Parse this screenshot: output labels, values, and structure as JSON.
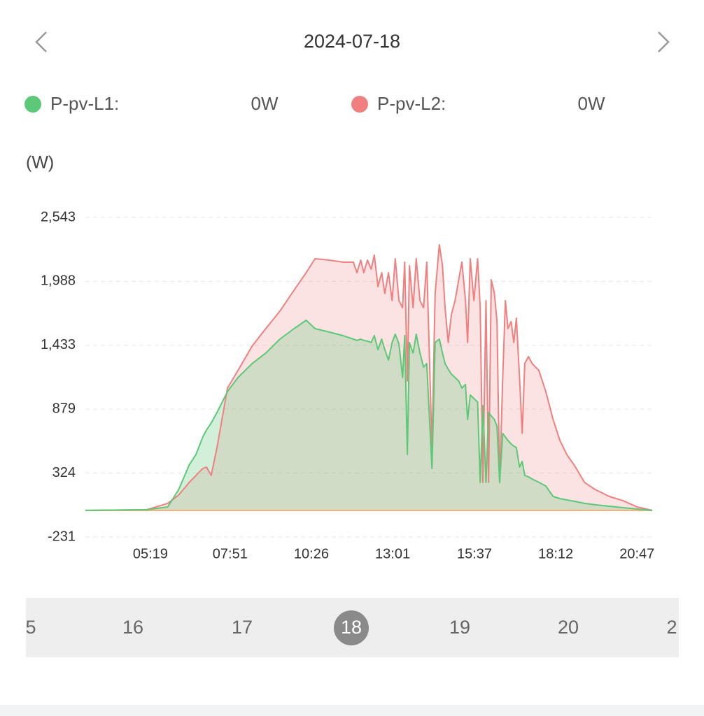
{
  "header": {
    "date": "2024-07-18"
  },
  "chart_data": {
    "type": "area",
    "y_label": "(W)",
    "x": [
      195,
      312,
      352,
      373,
      393,
      406,
      419,
      426,
      435,
      446,
      466,
      486,
      513,
      539,
      566,
      593,
      616,
      633,
      660,
      686,
      706,
      713,
      720,
      726,
      733,
      740,
      746,
      753,
      760,
      766,
      773,
      780,
      786,
      793,
      800,
      804,
      809,
      813,
      820,
      826,
      833,
      840,
      846,
      856,
      862,
      870,
      876,
      881,
      887,
      893,
      900,
      907,
      913,
      920,
      924,
      929,
      936,
      943,
      948,
      953,
      959,
      964,
      969,
      975,
      980,
      985,
      991,
      996,
      1001,
      1007,
      1012,
      1017,
      1023,
      1028,
      1033,
      1040,
      1047,
      1060,
      1073,
      1087,
      1100,
      1113,
      1127,
      1147,
      1167,
      1194,
      1220,
      1247,
      1276
    ],
    "series": [
      {
        "name": "P-pv-L1:",
        "current": "0W",
        "color": "#5cc878",
        "values": [
          0,
          6,
          30,
          182,
          395,
          486,
          637,
          698,
          759,
          850,
          1032,
          1153,
          1275,
          1366,
          1487,
          1578,
          1651,
          1578,
          1548,
          1518,
          1487,
          1475,
          1487,
          1475,
          1469,
          1457,
          1518,
          1396,
          1487,
          1396,
          1305,
          1457,
          1530,
          1445,
          1153,
          1518,
          486,
          1457,
          1366,
          1530,
          1366,
          1244,
          1275,
          364,
          1457,
          1487,
          1366,
          1275,
          1226,
          1184,
          1153,
          1123,
          1062,
          1093,
          789,
          1002,
          971,
          941,
          243,
          911,
          243,
          850,
          820,
          789,
          729,
          243,
          668,
          637,
          607,
          577,
          558,
          546,
          376,
          425,
          304,
          291,
          273,
          243,
          212,
          121,
          103,
          91,
          79,
          61,
          49,
          36,
          24,
          12,
          0
        ]
      },
      {
        "name": "P-pv-L2:",
        "current": "0W",
        "color": "#f08080",
        "values": [
          0,
          6,
          61,
          134,
          243,
          304,
          364,
          376,
          304,
          546,
          1062,
          1214,
          1426,
          1578,
          1730,
          1912,
          2064,
          2185,
          2173,
          2155,
          2155,
          2064,
          2173,
          2064,
          2173,
          2094,
          2216,
          1942,
          2064,
          1882,
          2064,
          1821,
          2185,
          1821,
          1760,
          2155,
          1123,
          2125,
          1760,
          2185,
          1821,
          1760,
          2155,
          546,
          1882,
          2307,
          2125,
          1760,
          1457,
          1700,
          1821,
          2003,
          2155,
          1821,
          1457,
          2185,
          1821,
          2185,
          1760,
          243,
          1821,
          243,
          2003,
          1882,
          1639,
          243,
          1153,
          1821,
          1578,
          1639,
          1457,
          1669,
          1153,
          668,
          1275,
          1335,
          1275,
          1214,
          1032,
          789,
          607,
          486,
          395,
          243,
          182,
          121,
          85,
          30,
          0
        ]
      }
    ],
    "xlim": [
      195,
      1276
    ],
    "xticks": [
      {
        "value": 319,
        "label": "05:19"
      },
      {
        "value": 471,
        "label": "07:51"
      },
      {
        "value": 626,
        "label": "10:26"
      },
      {
        "value": 781,
        "label": "13:01"
      },
      {
        "value": 937,
        "label": "15:37"
      },
      {
        "value": 1092,
        "label": "18:12"
      },
      {
        "value": 1247,
        "label": "20:47"
      }
    ],
    "ylim": [
      -231,
      2543
    ],
    "yticks": [
      -231,
      324,
      879,
      {
        "value": 1433,
        "label": "1,433"
      },
      {
        "value": 1988,
        "label": "1,988"
      },
      {
        "value": 2543,
        "label": "2,543"
      }
    ],
    "grid": true
  },
  "day_picker": {
    "days": [
      "5",
      "16",
      "17",
      "18",
      "19",
      "20",
      "2"
    ],
    "selected": 3
  }
}
